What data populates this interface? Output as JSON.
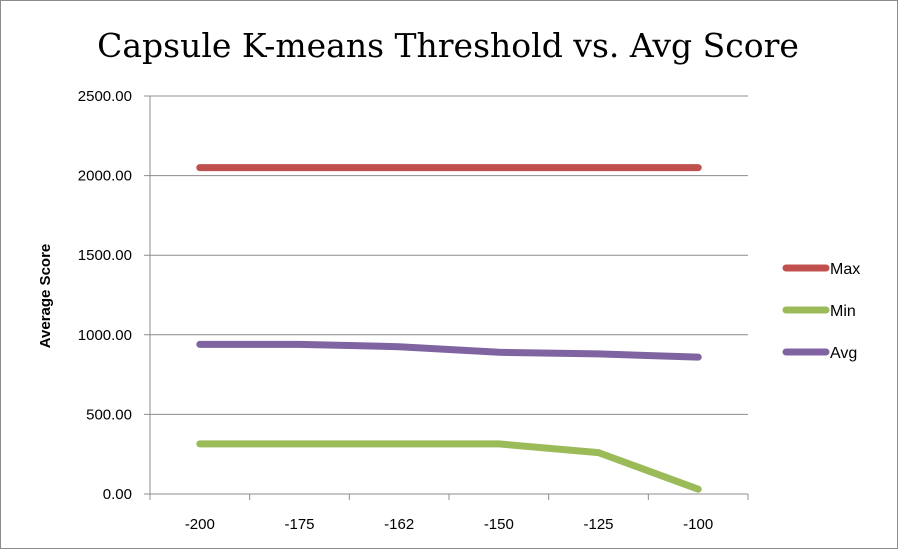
{
  "chart_data": {
    "type": "line",
    "title": "Capsule K-means Threshold vs. Avg Score",
    "xlabel": "",
    "ylabel": "Average Score",
    "categories": [
      "-200",
      "-175",
      "-162",
      "-150",
      "-125",
      "-100"
    ],
    "ylim": [
      0,
      2500
    ],
    "yticks": [
      "0.00",
      "500.00",
      "1000.00",
      "1500.00",
      "2000.00",
      "2500.00"
    ],
    "grid": true,
    "legend_position": "right",
    "series": [
      {
        "name": "Max",
        "color": "#c0504d",
        "values": [
          2050,
          2050,
          2050,
          2050,
          2050,
          2050
        ]
      },
      {
        "name": "Min",
        "color": "#9bbb59",
        "values": [
          315,
          315,
          315,
          315,
          260,
          30
        ]
      },
      {
        "name": "Avg",
        "color": "#8064a2",
        "values": [
          940,
          940,
          925,
          890,
          880,
          860
        ]
      }
    ]
  }
}
